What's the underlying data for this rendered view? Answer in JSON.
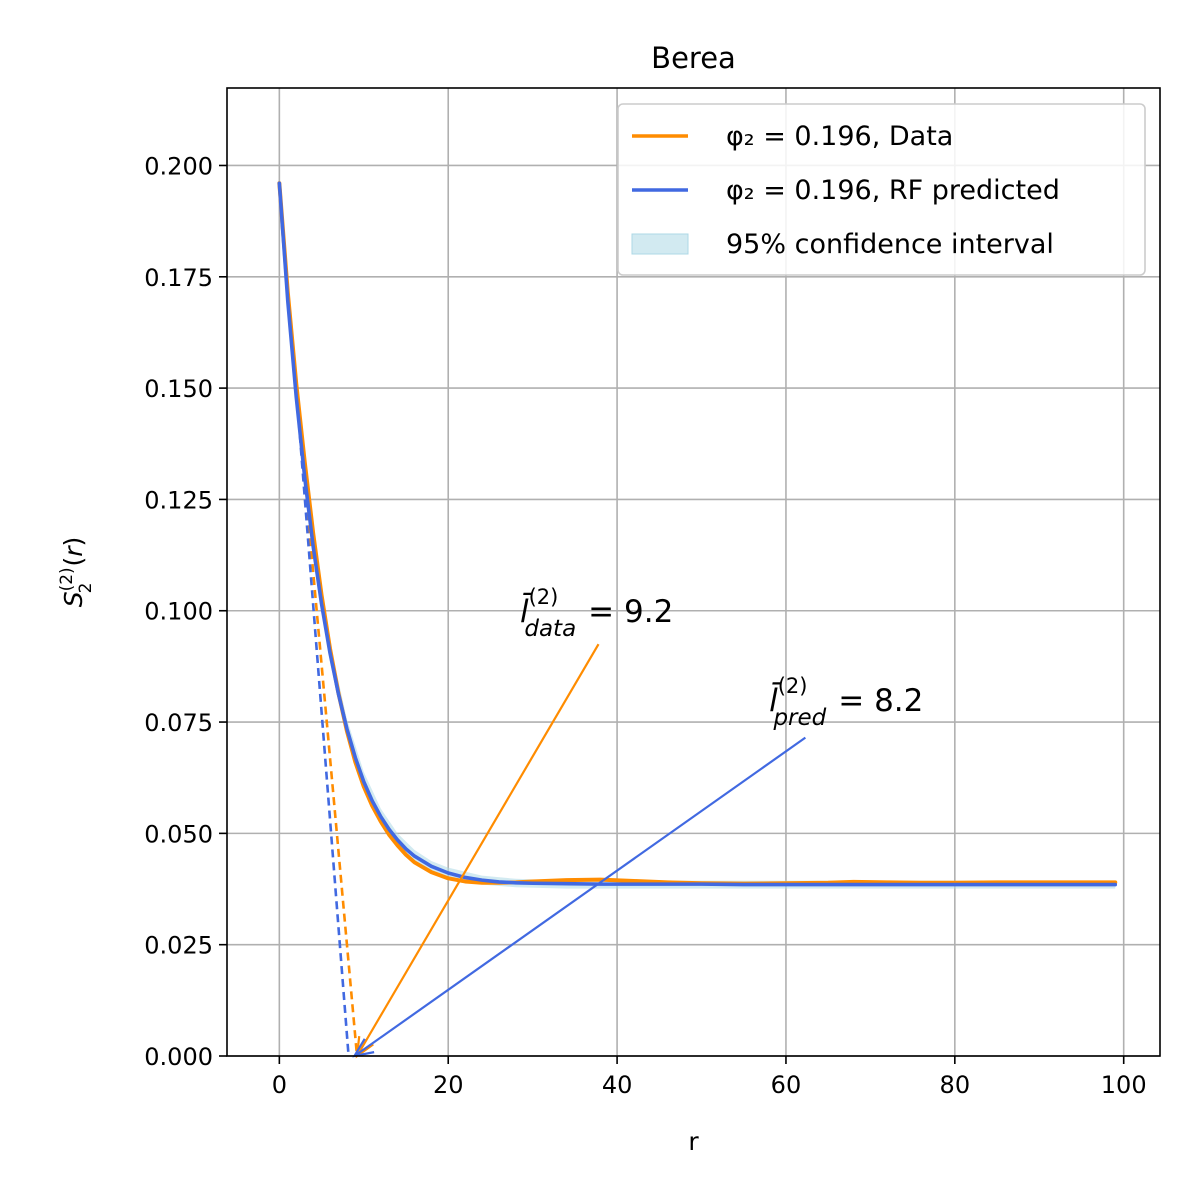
{
  "chart_data": {
    "type": "line",
    "title": "Berea",
    "xlabel": "r",
    "ylabel": "S_2^(2)(r)",
    "xlim": [
      -6.2,
      104.3
    ],
    "ylim": [
      0.0,
      0.2174
    ],
    "xticks": [
      0,
      20,
      40,
      60,
      80,
      100
    ],
    "xtick_labels": [
      "0",
      "20",
      "40",
      "60",
      "80",
      "100"
    ],
    "yticks": [
      0.0,
      0.025,
      0.05,
      0.075,
      0.1,
      0.125,
      0.15,
      0.175,
      0.2
    ],
    "ytick_labels": [
      "0.000",
      "0.025",
      "0.050",
      "0.075",
      "0.100",
      "0.125",
      "0.150",
      "0.175",
      "0.200"
    ],
    "grid": true,
    "legend_position": "top-right",
    "series": [
      {
        "name": "φ₂ = 0.196, Data",
        "color": "#ff8c00",
        "x": [
          0,
          1,
          2,
          3,
          4,
          5,
          6,
          7,
          8,
          9,
          10,
          11,
          12,
          13,
          14,
          15,
          16,
          18,
          20,
          22,
          24,
          26,
          28,
          30,
          34,
          38,
          42,
          46,
          50,
          55,
          60,
          65,
          68,
          72,
          76,
          80,
          85,
          90,
          95,
          99
        ],
        "y": [
          0.196,
          0.1715,
          0.151,
          0.1335,
          0.1175,
          0.1035,
          0.0915,
          0.0815,
          0.073,
          0.066,
          0.0605,
          0.0562,
          0.0527,
          0.0497,
          0.0473,
          0.0452,
          0.0435,
          0.0413,
          0.0399,
          0.0392,
          0.0389,
          0.0389,
          0.039,
          0.0392,
          0.0395,
          0.0396,
          0.0393,
          0.039,
          0.0388,
          0.0387,
          0.0388,
          0.0389,
          0.0391,
          0.039,
          0.0389,
          0.0389,
          0.039,
          0.039,
          0.039,
          0.039
        ]
      },
      {
        "name": "φ₂ = 0.196, RF predicted",
        "color": "#4169e1",
        "x": [
          0,
          1,
          2,
          3,
          4,
          5,
          6,
          7,
          8,
          9,
          10,
          11,
          12,
          13,
          14,
          15,
          16,
          18,
          20,
          22,
          24,
          26,
          28,
          30,
          34,
          38,
          42,
          46,
          50,
          55,
          60,
          65,
          70,
          75,
          80,
          85,
          90,
          95,
          99
        ],
        "y": [
          0.196,
          0.1695,
          0.148,
          0.13,
          0.1145,
          0.1015,
          0.0905,
          0.0813,
          0.0735,
          0.067,
          0.0616,
          0.0573,
          0.0538,
          0.0509,
          0.0485,
          0.0465,
          0.0449,
          0.0426,
          0.0411,
          0.0401,
          0.0395,
          0.0391,
          0.0389,
          0.0388,
          0.0387,
          0.0386,
          0.0386,
          0.0386,
          0.0386,
          0.0385,
          0.0385,
          0.0385,
          0.0385,
          0.0385,
          0.0385,
          0.0385,
          0.0385,
          0.0385,
          0.0385
        ]
      }
    ],
    "confidence_band": {
      "name": "95% confidence interval",
      "color": "#add8e6",
      "x": [
        0,
        2,
        4,
        6,
        8,
        10,
        12,
        14,
        16,
        18,
        20,
        24,
        28,
        34,
        40,
        50,
        60,
        70,
        80,
        90,
        99
      ],
      "lower": [
        0.195,
        0.146,
        0.1125,
        0.0885,
        0.0715,
        0.06,
        0.0523,
        0.0472,
        0.0437,
        0.0415,
        0.04,
        0.0385,
        0.0379,
        0.0376,
        0.0376,
        0.0376,
        0.0376,
        0.0376,
        0.0376,
        0.0376,
        0.0376
      ],
      "upper": [
        0.197,
        0.1505,
        0.117,
        0.0927,
        0.0757,
        0.0638,
        0.0556,
        0.05,
        0.0463,
        0.0438,
        0.0423,
        0.0405,
        0.0398,
        0.0394,
        0.0394,
        0.0394,
        0.0394,
        0.0394,
        0.0394,
        0.0394,
        0.0394
      ]
    },
    "tangent_lines": [
      {
        "color": "#ff8c00",
        "x": [
          1.7,
          9.2
        ],
        "y": [
          0.157,
          0.0
        ]
      },
      {
        "color": "#4169e1",
        "x": [
          1.7,
          8.2
        ],
        "y": [
          0.157,
          0.0
        ]
      }
    ],
    "annotations": [
      {
        "symbol": "l̄",
        "sup": "(2)",
        "sub": "data",
        "value_text": "= 9.2",
        "color": "#ff8c00",
        "text_x": 28.5,
        "text_y": 0.0975,
        "arrow_from": [
          37.8,
          0.0925
        ],
        "arrow_to": [
          9.2,
          0.0
        ]
      },
      {
        "symbol": "l̄",
        "sup": "(2)",
        "sub": "pred",
        "value_text": "= 8.2",
        "color": "#4169e1",
        "text_x": 58.0,
        "text_y": 0.0775,
        "arrow_from": [
          62.3,
          0.0715
        ],
        "arrow_to": [
          8.9,
          0.0
        ]
      }
    ]
  }
}
